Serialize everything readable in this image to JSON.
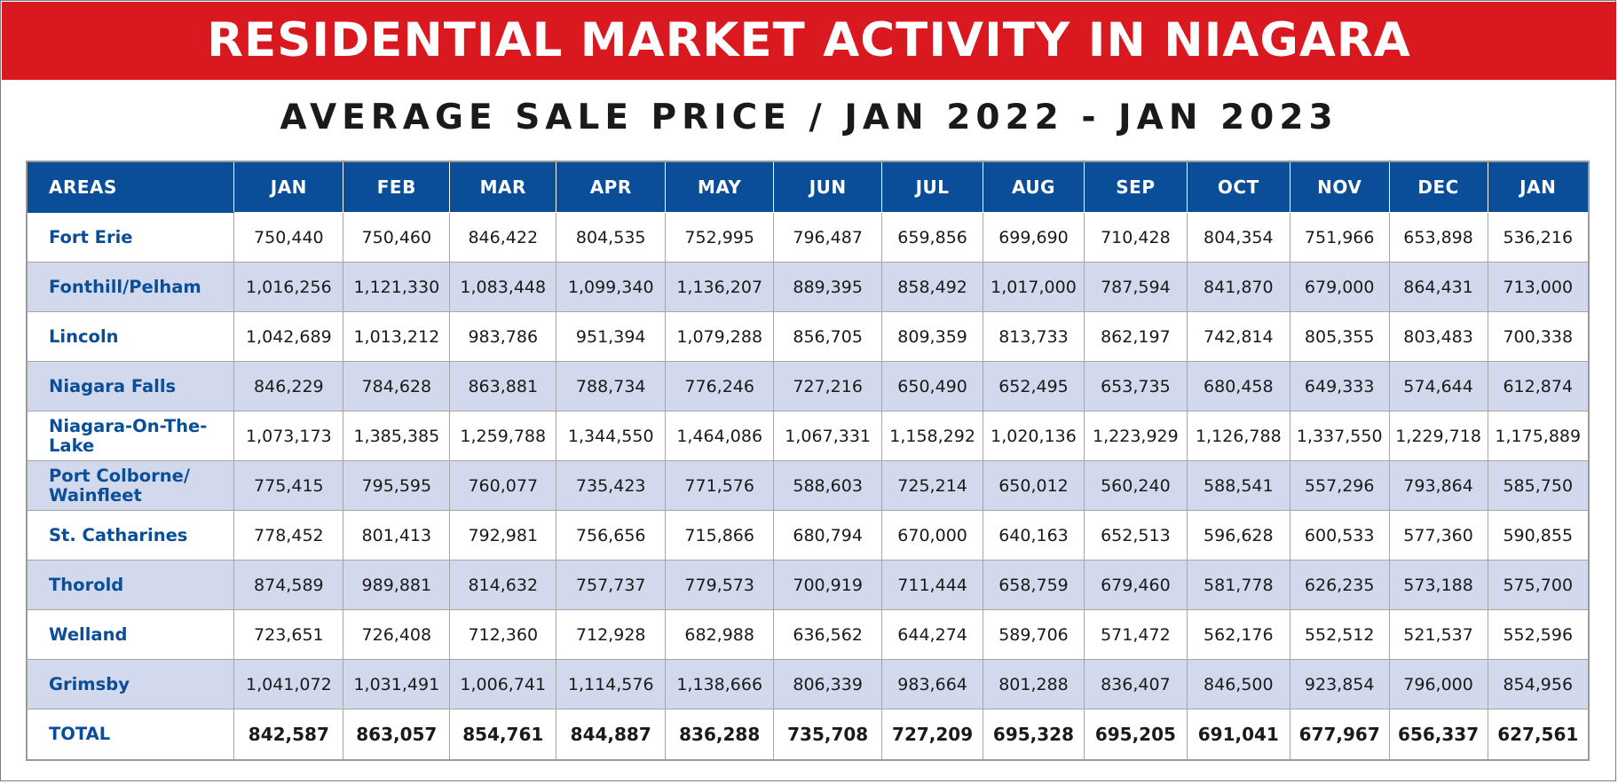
{
  "title": "RESIDENTIAL MARKET ACTIVITY IN NIAGARA",
  "subtitle": "AVERAGE SALE PRICE / JAN 2022 - JAN 2023",
  "colors": {
    "banner": "#d9181f",
    "header": "#0a4e9a",
    "stripe": "#d3d9ec",
    "area_text": "#0a4e9a"
  },
  "table": {
    "area_header": "AREAS",
    "months": [
      "JAN",
      "FEB",
      "MAR",
      "APR",
      "MAY",
      "JUN",
      "JUL",
      "AUG",
      "SEP",
      "OCT",
      "NOV",
      "DEC",
      "JAN"
    ],
    "rows": [
      {
        "area": "Fort Erie",
        "values": [
          "750,440",
          "750,460",
          "846,422",
          "804,535",
          "752,995",
          "796,487",
          "659,856",
          "699,690",
          "710,428",
          "804,354",
          "751,966",
          "653,898",
          "536,216"
        ]
      },
      {
        "area": "Fonthill/Pelham",
        "values": [
          "1,016,256",
          "1,121,330",
          "1,083,448",
          "1,099,340",
          "1,136,207",
          "889,395",
          "858,492",
          "1,017,000",
          "787,594",
          "841,870",
          "679,000",
          "864,431",
          "713,000"
        ]
      },
      {
        "area": "Lincoln",
        "values": [
          "1,042,689",
          "1,013,212",
          "983,786",
          "951,394",
          "1,079,288",
          "856,705",
          "809,359",
          "813,733",
          "862,197",
          "742,814",
          "805,355",
          "803,483",
          "700,338"
        ]
      },
      {
        "area": "Niagara Falls",
        "values": [
          "846,229",
          "784,628",
          "863,881",
          "788,734",
          "776,246",
          "727,216",
          "650,490",
          "652,495",
          "653,735",
          "680,458",
          "649,333",
          "574,644",
          "612,874"
        ]
      },
      {
        "area": "Niagara-On-The-Lake",
        "values": [
          "1,073,173",
          "1,385,385",
          "1,259,788",
          "1,344,550",
          "1,464,086",
          "1,067,331",
          "1,158,292",
          "1,020,136",
          "1,223,929",
          "1,126,788",
          "1,337,550",
          "1,229,718",
          "1,175,889"
        ]
      },
      {
        "area": "Port Colborne/ Wainfleet",
        "values": [
          "775,415",
          "795,595",
          "760,077",
          "735,423",
          "771,576",
          "588,603",
          "725,214",
          "650,012",
          "560,240",
          "588,541",
          "557,296",
          "793,864",
          "585,750"
        ]
      },
      {
        "area": "St. Catharines",
        "values": [
          "778,452",
          "801,413",
          "792,981",
          "756,656",
          "715,866",
          "680,794",
          "670,000",
          "640,163",
          "652,513",
          "596,628",
          "600,533",
          "577,360",
          "590,855"
        ]
      },
      {
        "area": "Thorold",
        "values": [
          "874,589",
          "989,881",
          "814,632",
          "757,737",
          "779,573",
          "700,919",
          "711,444",
          "658,759",
          "679,460",
          "581,778",
          "626,235",
          "573,188",
          "575,700"
        ]
      },
      {
        "area": "Welland",
        "values": [
          "723,651",
          "726,408",
          "712,360",
          "712,928",
          "682,988",
          "636,562",
          "644,274",
          "589,706",
          "571,472",
          "562,176",
          "552,512",
          "521,537",
          "552,596"
        ]
      },
      {
        "area": "Grimsby",
        "values": [
          "1,041,072",
          "1,031,491",
          "1,006,741",
          "1,114,576",
          "1,138,666",
          "806,339",
          "983,664",
          "801,288",
          "836,407",
          "846,500",
          "923,854",
          "796,000",
          "854,956"
        ]
      }
    ],
    "total": {
      "area": "TOTAL",
      "values": [
        "842,587",
        "863,057",
        "854,761",
        "844,887",
        "836,288",
        "735,708",
        "727,209",
        "695,328",
        "695,205",
        "691,041",
        "677,967",
        "656,337",
        "627,561"
      ]
    }
  }
}
